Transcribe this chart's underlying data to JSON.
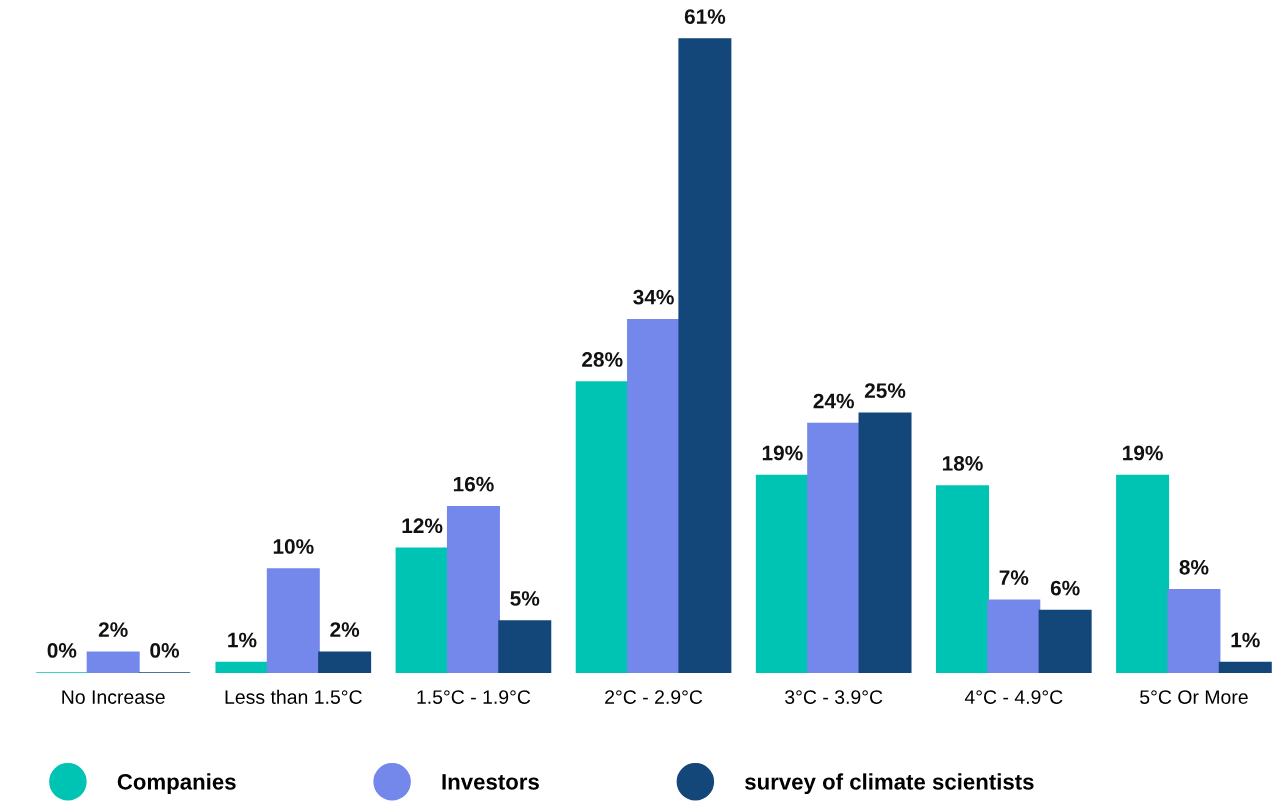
{
  "chart_data": {
    "type": "bar",
    "categories": [
      "No Increase",
      "Less than 1.5°C",
      "1.5°C - 1.9°C",
      "2°C - 2.9°C",
      "3°C - 3.9°C",
      "4°C - 4.9°C",
      "5°C Or More"
    ],
    "series": [
      {
        "name": "Companies",
        "color": "#00c4b3",
        "values": [
          0,
          1,
          12,
          28,
          19,
          18,
          19
        ],
        "value_labels": [
          "0%",
          "1%",
          "12%",
          "28%",
          "19%",
          "18%",
          "19%"
        ]
      },
      {
        "name": "Investors",
        "color": "#7488ec",
        "values": [
          2,
          10,
          16,
          34,
          24,
          7,
          8
        ],
        "value_labels": [
          "2%",
          "10%",
          "16%",
          "34%",
          "24%",
          "7%",
          "8%"
        ]
      },
      {
        "name": "survey of climate scientists",
        "color": "#134679",
        "values": [
          0,
          2,
          5,
          61,
          25,
          6,
          1
        ],
        "value_labels": [
          "0%",
          "2%",
          "5%",
          "61%",
          "25%",
          "6%",
          "1%"
        ]
      }
    ],
    "legend": "bottom"
  }
}
